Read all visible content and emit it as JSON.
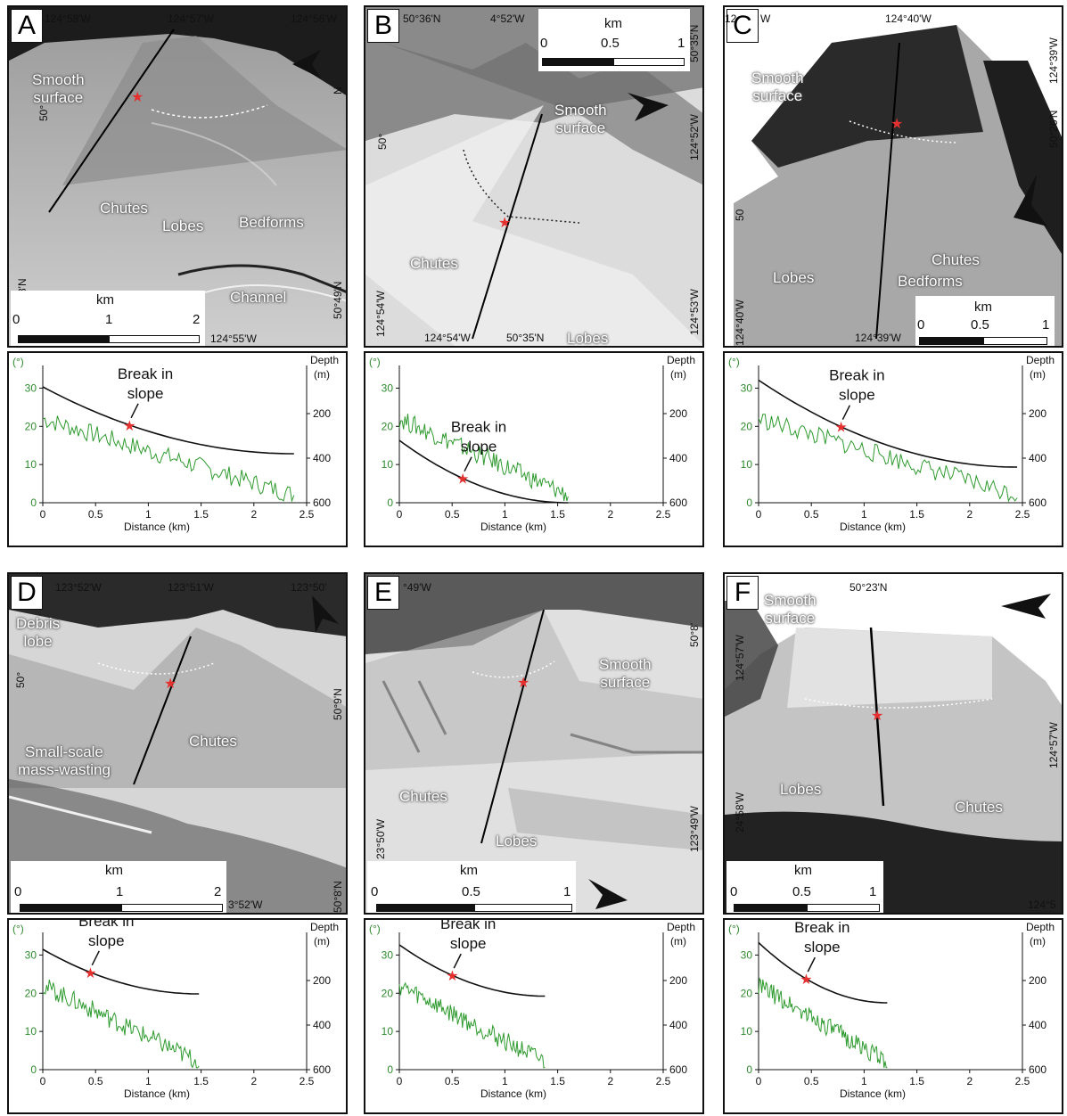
{
  "panels": [
    {
      "letter": "A",
      "coords": [
        "124°58'W",
        "124°57'W",
        "124°56'W",
        "50°",
        "124°55'W",
        "8'N",
        "50°49'N",
        "N"
      ],
      "labels": [
        "Smooth\nsurface",
        "Chutes",
        "Lobes",
        "Bedforms",
        "Channel"
      ],
      "scale": {
        "unit": "km",
        "ticks": [
          "0",
          "1",
          "2"
        ]
      },
      "profile": {
        "xmax": 2.38,
        "depth_start": 80,
        "depth_end": 380,
        "break_x": 0.82
      }
    },
    {
      "letter": "B",
      "coords": [
        "50°36'N",
        "4°52'W",
        "50°35'N",
        "124°52'W",
        "50°",
        "124°54'W",
        "124°54'W",
        "50°35'N",
        "124°53'W"
      ],
      "labels": [
        "Smooth\nsurface",
        "Chutes",
        "Lobes"
      ],
      "scale": {
        "unit": "km",
        "ticks": [
          "0",
          "0.5",
          "1"
        ]
      },
      "profile": {
        "xmax": 1.6,
        "depth_start": 320,
        "depth_end": 600,
        "break_x": 0.6
      }
    },
    {
      "letter": "C",
      "coords": [
        "12",
        "W",
        "124°40'W",
        "124°39'W",
        "50°26'N",
        "50",
        "124°40'W",
        "124°39'W"
      ],
      "labels": [
        "Smooth\nsurface",
        "Lobes",
        "Bedforms",
        "Chutes"
      ],
      "scale": {
        "unit": "km",
        "ticks": [
          "0",
          "0.5",
          "1"
        ]
      },
      "profile": {
        "xmax": 2.45,
        "depth_start": 50,
        "depth_end": 440,
        "break_x": 0.78
      }
    },
    {
      "letter": "D",
      "coords": [
        "123°52'W",
        "123°51'W",
        "123°50'",
        "50°",
        "50°9'N",
        "3°52'W",
        "50°8'N"
      ],
      "labels": [
        "Debris\nlobe",
        "Small-scale\nmass-wasting",
        "Chutes"
      ],
      "scale": {
        "unit": "km",
        "ticks": [
          "0",
          "1",
          "2"
        ]
      },
      "profile": {
        "xmax": 1.48,
        "depth_start": 60,
        "depth_end": 260,
        "break_x": 0.45
      }
    },
    {
      "letter": "E",
      "coords": [
        "°49'W",
        "50°8'",
        "23°50'W",
        "123°49'W"
      ],
      "labels": [
        "Smooth\nsurface",
        "Chutes",
        "Lobes"
      ],
      "scale": {
        "unit": "km",
        "ticks": [
          "0",
          "0.5",
          "1"
        ]
      },
      "profile": {
        "xmax": 1.38,
        "depth_start": 40,
        "depth_end": 270,
        "break_x": 0.5
      }
    },
    {
      "letter": "F",
      "coords": [
        "50°23'N",
        "124°57'W",
        "124°57'W",
        "24°58'W",
        "124°5"
      ],
      "labels": [
        "Smooth\nsurface",
        "Lobes",
        "Chutes"
      ],
      "scale": {
        "unit": "km",
        "ticks": [
          "0",
          "0.5",
          "1"
        ]
      },
      "profile": {
        "xmax": 1.22,
        "depth_start": 30,
        "depth_end": 300,
        "break_x": 0.45
      }
    }
  ],
  "profile_text": {
    "left_unit": "(°)",
    "right_title": "Depth",
    "right_unit": "(m)",
    "xlabel": "Distance (km)",
    "annotation_line1": "Break in",
    "annotation_line2": "slope",
    "x_ticks": [
      "0",
      "0.5",
      "1",
      "1.5",
      "2",
      "2.5"
    ],
    "slope_ticks": [
      "0",
      "10",
      "20",
      "30"
    ],
    "depth_ticks": [
      "200",
      "400",
      "600"
    ]
  },
  "colors": {
    "slope": "#2e9a2e",
    "depth": "#111111",
    "break_marker": "#e53030",
    "slope_axis": "#2e8a2e"
  }
}
